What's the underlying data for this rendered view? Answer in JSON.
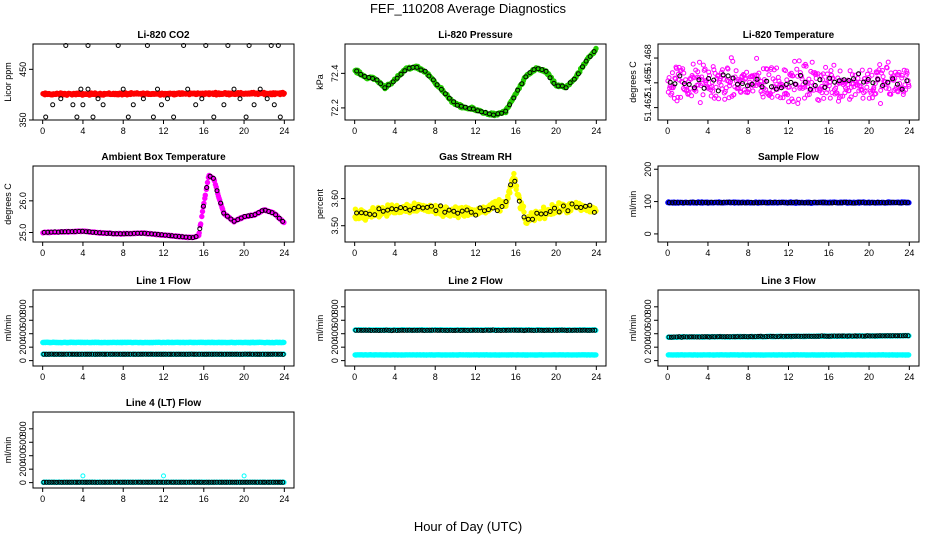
{
  "page_title": "FEF_110208  Average Diagnostics",
  "x_label": "Hour of Day (UTC)",
  "colors": {
    "red": "#ff0000",
    "green": "#22cc00",
    "magenta": "#ff00ff",
    "yellow": "#ffff00",
    "blue": "#0000ff",
    "cyan": "#00ffff",
    "black": "#000000"
  },
  "chart_data": [
    {
      "type": "scatter",
      "title": "Li-820 CO2",
      "ylabel": "Licor ppm",
      "xlim": [
        0,
        24
      ],
      "ylim": [
        350,
        500
      ],
      "xticks": [
        "0",
        "4",
        "8",
        "12",
        "16",
        "20",
        "24"
      ],
      "yticks": [
        {
          "v": 350,
          "label": "350"
        },
        {
          "v": 450,
          "label": "450"
        }
      ],
      "series": [
        {
          "name": "co2-line",
          "color": "red",
          "filled": true,
          "baseline": 401,
          "amp": 1.5,
          "noise": 3,
          "n": 400,
          "spread_pts": []
        },
        {
          "name": "co2-avg",
          "color": "black",
          "filled": false,
          "points": [
            [
              0.3,
              356
            ],
            [
              1,
              380
            ],
            [
              1.8,
              392
            ],
            [
              2.3,
              497
            ],
            [
              3,
              380
            ],
            [
              3.4,
              356
            ],
            [
              3.8,
              411
            ],
            [
              4.5,
              497
            ],
            [
              4.5,
              411
            ],
            [
              4,
              380
            ],
            [
              5,
              356
            ],
            [
              5.5,
              392
            ],
            [
              6,
              380
            ],
            [
              7.5,
              497
            ],
            [
              8,
              411
            ],
            [
              8.5,
              356
            ],
            [
              9,
              380
            ],
            [
              10,
              392
            ],
            [
              10.4,
              497
            ],
            [
              11,
              356
            ],
            [
              11.4,
              411
            ],
            [
              11.8,
              380
            ],
            [
              12.4,
              392
            ],
            [
              13,
              356
            ],
            [
              14,
              497
            ],
            [
              14.4,
              411
            ],
            [
              15.2,
              380
            ],
            [
              15.8,
              392
            ],
            [
              16.2,
              497
            ],
            [
              17,
              356
            ],
            [
              18,
              380
            ],
            [
              18.4,
              497
            ],
            [
              19,
              411
            ],
            [
              19.6,
              392
            ],
            [
              20.2,
              356
            ],
            [
              20.5,
              497
            ],
            [
              21,
              380
            ],
            [
              21.6,
              411
            ],
            [
              22.3,
              392
            ],
            [
              22.7,
              497
            ],
            [
              23.4,
              497
            ],
            [
              23.6,
              356
            ],
            [
              23,
              380
            ]
          ]
        }
      ]
    },
    {
      "type": "scatter",
      "title": "Li-820 Pressure",
      "ylabel": "kPa",
      "xlim": [
        0,
        24
      ],
      "ylim": [
        72.13,
        72.57
      ],
      "xticks": [
        "0",
        "4",
        "8",
        "12",
        "16",
        "20",
        "24"
      ],
      "yticks": [
        {
          "v": 72.2,
          "label": "72.2"
        },
        {
          "v": 72.4,
          "label": "72.4"
        }
      ],
      "series": [
        {
          "name": "pressure",
          "color": "green",
          "filled": true,
          "curve": [
            [
              0,
              72.42
            ],
            [
              1,
              72.38
            ],
            [
              2,
              72.37
            ],
            [
              3,
              72.32
            ],
            [
              4,
              72.36
            ],
            [
              5,
              72.42
            ],
            [
              6,
              72.44
            ],
            [
              7,
              72.41
            ],
            [
              8,
              72.35
            ],
            [
              9,
              72.28
            ],
            [
              10,
              72.22
            ],
            [
              11,
              72.2
            ],
            [
              12,
              72.19
            ],
            [
              13,
              72.17
            ],
            [
              14,
              72.16
            ],
            [
              15,
              72.18
            ],
            [
              16,
              72.28
            ],
            [
              17,
              72.38
            ],
            [
              18,
              72.43
            ],
            [
              19,
              72.41
            ],
            [
              20,
              72.33
            ],
            [
              21,
              72.32
            ],
            [
              22,
              72.38
            ],
            [
              23,
              72.47
            ],
            [
              24,
              72.54
            ]
          ],
          "noise": 0.012,
          "n": 300
        },
        {
          "name": "pressure-avg",
          "color": "black",
          "filled": false,
          "follow": 0,
          "n": 60,
          "noise": 0.008
        }
      ]
    },
    {
      "type": "scatter",
      "title": "Li-820 Temperature",
      "ylabel": "degrees C",
      "xlim": [
        0,
        24
      ],
      "ylim": [
        51.4605,
        51.4697
      ],
      "xticks": [
        "0",
        "4",
        "8",
        "12",
        "16",
        "20",
        "24"
      ],
      "yticks": [
        {
          "v": 51.462,
          "label": "51.462"
        },
        {
          "v": 51.465,
          "label": "51.465"
        },
        {
          "v": 51.468,
          "label": "51.468"
        }
      ],
      "series": [
        {
          "name": "temp",
          "color": "magenta",
          "filled": false,
          "baseline": 51.465,
          "amp": 0,
          "noise": 0.0035,
          "n": 420
        },
        {
          "name": "temp-avg",
          "color": "black",
          "filled": false,
          "baseline": 51.465,
          "amp": 0,
          "noise": 0.0015,
          "n": 50
        }
      ]
    },
    {
      "type": "scatter",
      "title": "Ambient Box Temperature",
      "ylabel": "degrees C",
      "xlim": [
        0,
        24
      ],
      "ylim": [
        24.7,
        27.1
      ],
      "xticks": [
        "0",
        "4",
        "8",
        "12",
        "16",
        "20",
        "24"
      ],
      "yticks": [
        {
          "v": 25.0,
          "label": "25.0"
        },
        {
          "v": 26.0,
          "label": "26.0"
        }
      ],
      "series": [
        {
          "name": "ambient",
          "color": "magenta",
          "filled": true,
          "curve": [
            [
              0,
              25.0
            ],
            [
              2,
              25.02
            ],
            [
              4,
              25.04
            ],
            [
              6,
              24.98
            ],
            [
              8,
              24.96
            ],
            [
              10,
              24.98
            ],
            [
              12,
              24.92
            ],
            [
              14,
              24.86
            ],
            [
              15,
              24.84
            ],
            [
              15.5,
              24.9
            ],
            [
              16,
              25.9
            ],
            [
              16.5,
              26.8
            ],
            [
              17,
              26.7
            ],
            [
              17.5,
              26.1
            ],
            [
              18,
              25.6
            ],
            [
              19,
              25.35
            ],
            [
              20,
              25.5
            ],
            [
              21,
              25.55
            ],
            [
              22,
              25.72
            ],
            [
              23,
              25.6
            ],
            [
              24,
              25.3
            ]
          ],
          "noise": 0.02,
          "n": 320
        },
        {
          "name": "ambient-avg",
          "color": "black",
          "filled": false,
          "follow": 0,
          "n": 70,
          "noise": 0.01
        }
      ]
    },
    {
      "type": "scatter",
      "title": "Gas Stream RH",
      "ylabel": "percent",
      "xlim": [
        0,
        24
      ],
      "ylim": [
        3.44,
        3.72
      ],
      "xticks": [
        "0",
        "4",
        "8",
        "12",
        "16",
        "20",
        "24"
      ],
      "yticks": [
        {
          "v": 3.5,
          "label": "3.50"
        },
        {
          "v": 3.6,
          "label": "3.60"
        }
      ],
      "series": [
        {
          "name": "rh",
          "color": "yellow",
          "filled": true,
          "curve": [
            [
              0,
              3.54
            ],
            [
              2,
              3.55
            ],
            [
              4,
              3.56
            ],
            [
              6,
              3.57
            ],
            [
              8,
              3.56
            ],
            [
              10,
              3.55
            ],
            [
              12,
              3.55
            ],
            [
              14,
              3.57
            ],
            [
              15,
              3.58
            ],
            [
              15.8,
              3.68
            ],
            [
              16.3,
              3.6
            ],
            [
              17,
              3.52
            ],
            [
              18,
              3.54
            ],
            [
              20,
              3.56
            ],
            [
              22,
              3.57
            ],
            [
              24,
              3.56
            ]
          ],
          "noise": 0.028,
          "n": 420
        },
        {
          "name": "rh-avg",
          "color": "black",
          "filled": false,
          "follow": 0,
          "n": 55,
          "noise": 0.02
        }
      ]
    },
    {
      "type": "scatter",
      "title": "Sample Flow",
      "ylabel": "ml/min",
      "xlim": [
        0,
        24
      ],
      "ylim": [
        -25,
        210
      ],
      "xticks": [
        "0",
        "4",
        "8",
        "12",
        "16",
        "20",
        "24"
      ],
      "yticks": [
        {
          "v": 0,
          "label": "0"
        },
        {
          "v": 100,
          "label": "100"
        },
        {
          "v": 200,
          "label": "200"
        }
      ],
      "series": [
        {
          "name": "sample",
          "color": "blue",
          "filled": true,
          "baseline": 97,
          "amp": 0,
          "noise": 2.5,
          "n": 350
        },
        {
          "name": "sample-avg",
          "color": "black",
          "filled": false,
          "baseline": 97,
          "amp": 0,
          "noise": 2,
          "n": 80
        }
      ]
    },
    {
      "type": "scatter",
      "title": "Line 1 Flow",
      "ylabel": "ml/min",
      "xlim": [
        0,
        24
      ],
      "ylim": [
        -80,
        1050
      ],
      "xticks": [
        "0",
        "4",
        "8",
        "12",
        "16",
        "20",
        "24"
      ],
      "yticks": [
        {
          "v": 0,
          "label": "0"
        },
        {
          "v": 200,
          "label": "200"
        },
        {
          "v": 400,
          "label": "400"
        },
        {
          "v": 600,
          "label": "600"
        },
        {
          "v": 800,
          "label": "800"
        }
      ],
      "series": [
        {
          "name": "l1-a",
          "color": "cyan",
          "filled": true,
          "baseline": 270,
          "amp": 0,
          "noise": 5,
          "n": 320,
          "dips": [
            4,
            12,
            20
          ]
        },
        {
          "name": "l1-b",
          "color": "cyan",
          "filled": true,
          "baseline": 95,
          "amp": 0,
          "noise": 3,
          "n": 220
        },
        {
          "name": "l1-avg",
          "color": "black",
          "filled": false,
          "baseline": 95,
          "amp": 0,
          "noise": 2,
          "n": 95
        }
      ]
    },
    {
      "type": "scatter",
      "title": "Line 2 Flow",
      "ylabel": "ml/min",
      "xlim": [
        0,
        24
      ],
      "ylim": [
        -80,
        1050
      ],
      "xticks": [
        "0",
        "4",
        "8",
        "12",
        "16",
        "20",
        "24"
      ],
      "yticks": [
        {
          "v": 0,
          "label": "0"
        },
        {
          "v": 200,
          "label": "200"
        },
        {
          "v": 400,
          "label": "400"
        },
        {
          "v": 600,
          "label": "600"
        },
        {
          "v": 800,
          "label": "800"
        }
      ],
      "series": [
        {
          "name": "l2-a",
          "color": "cyan",
          "filled": true,
          "baseline": 455,
          "amp": 0,
          "noise": 6,
          "n": 320
        },
        {
          "name": "l2-b",
          "color": "cyan",
          "filled": true,
          "baseline": 85,
          "amp": 0,
          "noise": 3,
          "n": 260
        },
        {
          "name": "l2-avg",
          "color": "black",
          "filled": false,
          "baseline": 450,
          "amp": 0,
          "noise": 5,
          "n": 95
        }
      ]
    },
    {
      "type": "scatter",
      "title": "Line 3 Flow",
      "ylabel": "ml/min",
      "xlim": [
        0,
        24
      ],
      "ylim": [
        -80,
        1050
      ],
      "xticks": [
        "0",
        "4",
        "8",
        "12",
        "16",
        "20",
        "24"
      ],
      "yticks": [
        {
          "v": 0,
          "label": "0"
        },
        {
          "v": 200,
          "label": "200"
        },
        {
          "v": 400,
          "label": "400"
        },
        {
          "v": 600,
          "label": "600"
        },
        {
          "v": 800,
          "label": "800"
        }
      ],
      "series": [
        {
          "name": "l3-a",
          "color": "cyan",
          "filled": true,
          "baseline": 350,
          "amp": 20,
          "noise": 6,
          "n": 320
        },
        {
          "name": "l3-b",
          "color": "cyan",
          "filled": true,
          "baseline": 85,
          "amp": 0,
          "noise": 3,
          "n": 260
        },
        {
          "name": "l3-avg",
          "color": "black",
          "filled": false,
          "baseline": 350,
          "amp": 20,
          "noise": 5,
          "n": 95
        }
      ]
    },
    {
      "type": "scatter",
      "title": "Line 4 (LT) Flow",
      "ylabel": "ml/min",
      "xlim": [
        0,
        24
      ],
      "ylim": [
        -80,
        1050
      ],
      "xticks": [
        "0",
        "4",
        "8",
        "12",
        "16",
        "20",
        "24"
      ],
      "yticks": [
        {
          "v": 0,
          "label": "0"
        },
        {
          "v": 200,
          "label": "200"
        },
        {
          "v": 400,
          "label": "400"
        },
        {
          "v": 600,
          "label": "600"
        },
        {
          "v": 800,
          "label": "800"
        }
      ],
      "series": [
        {
          "name": "l4-a",
          "color": "cyan",
          "filled": true,
          "baseline": 5,
          "amp": 0,
          "noise": 3,
          "n": 260
        },
        {
          "name": "l4-spikes",
          "color": "cyan",
          "filled": false,
          "points": [
            [
              4,
              100
            ],
            [
              12,
              100
            ],
            [
              20,
              100
            ]
          ]
        },
        {
          "name": "l4-avg",
          "color": "black",
          "filled": false,
          "baseline": 5,
          "amp": 0,
          "noise": 2,
          "n": 95
        }
      ]
    }
  ]
}
